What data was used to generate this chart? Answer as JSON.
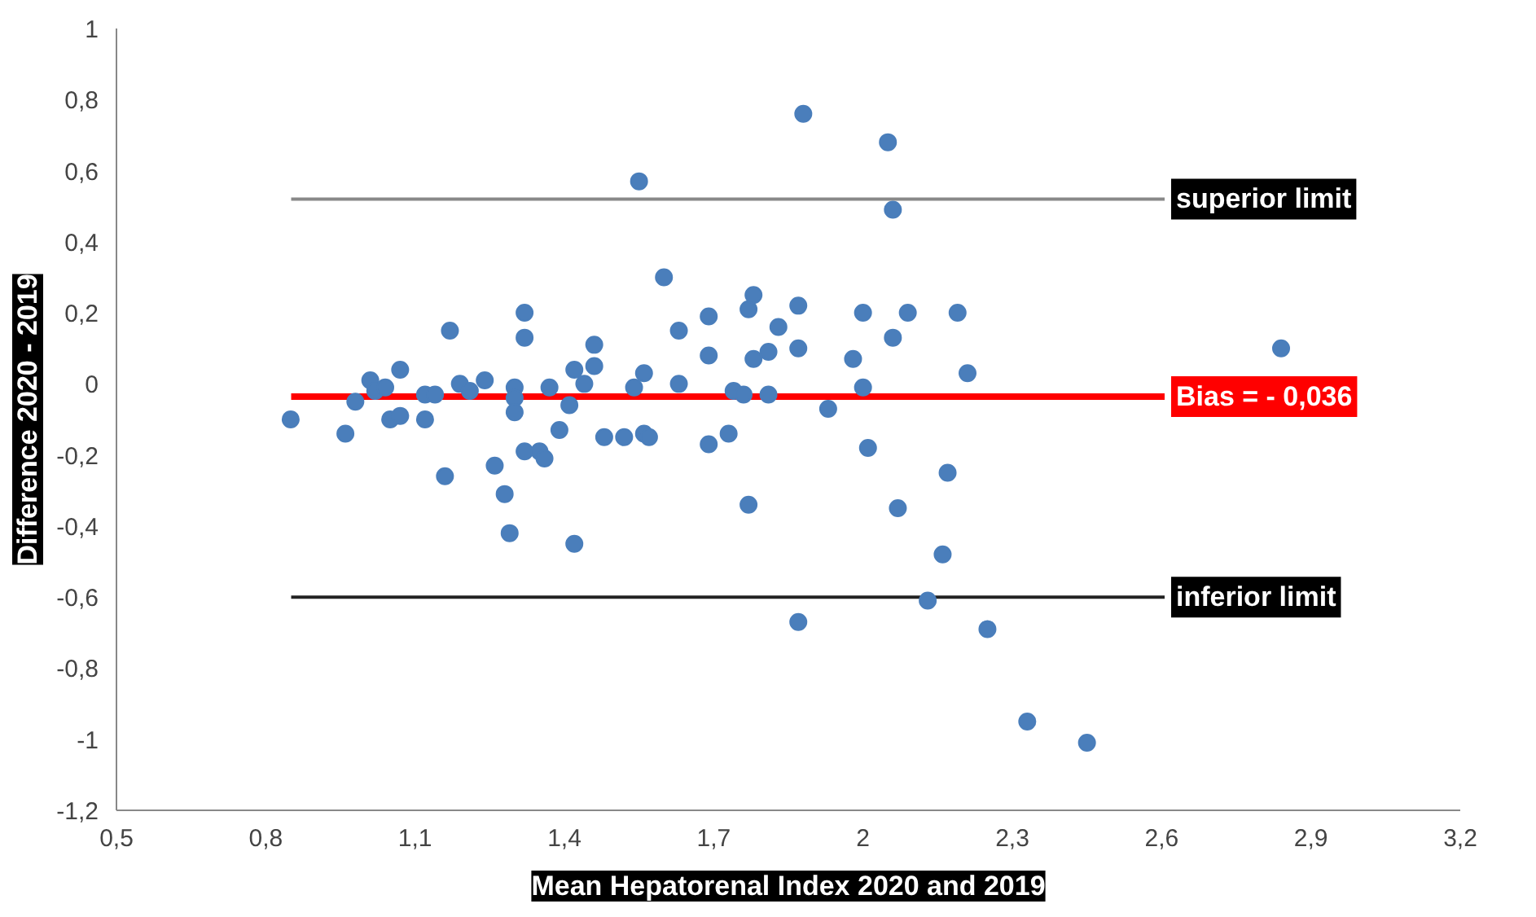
{
  "chart_data": {
    "type": "scatter",
    "xlabel": "Mean Hepatorenal Index 2020 and 2019",
    "ylabel": "Difference 2020 - 2019",
    "marker": "circle",
    "grid": false,
    "x": [
      0.85,
      0.96,
      0.98,
      1.01,
      1.02,
      1.04,
      1.05,
      1.07,
      1.07,
      1.12,
      1.12,
      1.14,
      1.16,
      1.17,
      1.19,
      1.21,
      1.24,
      1.26,
      1.28,
      1.3,
      1.3,
      1.3,
      1.29,
      1.32,
      1.32,
      1.32,
      1.35,
      1.36,
      1.37,
      1.39,
      1.41,
      1.42,
      1.42,
      1.44,
      1.46,
      1.46,
      1.48,
      1.52,
      1.54,
      1.55,
      1.56,
      1.56,
      1.57,
      1.6,
      1.63,
      1.63,
      1.69,
      1.69,
      1.69,
      1.73,
      1.74,
      1.76,
      1.77,
      1.78,
      1.77,
      1.78,
      1.81,
      1.81,
      1.83,
      1.87,
      1.87,
      1.87,
      1.88,
      1.93,
      1.98,
      2.0,
      2.0,
      2.01,
      2.05,
      2.06,
      2.06,
      2.07,
      2.09,
      2.13,
      2.16,
      2.17,
      2.19,
      2.21,
      2.25,
      2.33,
      2.45,
      2.84
    ],
    "series": [
      {
        "color": "#4a7ebb",
        "values": [
          -0.1,
          -0.14,
          -0.05,
          0.01,
          -0.02,
          -0.01,
          -0.1,
          -0.09,
          0.04,
          -0.03,
          -0.1,
          -0.03,
          -0.26,
          0.15,
          0.0,
          -0.02,
          0.01,
          -0.23,
          -0.31,
          -0.01,
          -0.04,
          -0.08,
          -0.42,
          0.2,
          0.13,
          -0.19,
          -0.19,
          -0.21,
          -0.01,
          -0.13,
          -0.06,
          -0.45,
          0.04,
          0.0,
          0.11,
          0.05,
          -0.15,
          -0.15,
          -0.01,
          0.57,
          0.03,
          -0.14,
          -0.15,
          0.3,
          0.15,
          0.0,
          0.19,
          0.08,
          -0.17,
          -0.14,
          -0.02,
          -0.03,
          0.21,
          0.25,
          -0.34,
          0.07,
          -0.03,
          0.09,
          0.16,
          0.22,
          0.1,
          -0.67,
          0.76,
          -0.07,
          0.07,
          0.2,
          -0.01,
          -0.18,
          0.68,
          0.49,
          0.13,
          -0.35,
          0.2,
          -0.61,
          -0.48,
          -0.25,
          0.2,
          0.03,
          -0.69,
          -0.95,
          -1.01,
          0.1
        ]
      }
    ],
    "xlim": [
      0.5,
      3.2
    ],
    "xticks": [
      {
        "value": 0.5,
        "label": "0,5"
      },
      {
        "value": 0.8,
        "label": "0,8"
      },
      {
        "value": 1.1,
        "label": "1,1"
      },
      {
        "value": 1.4,
        "label": "1,4"
      },
      {
        "value": 1.7,
        "label": "1,7"
      },
      {
        "value": 2.0,
        "label": "2"
      },
      {
        "value": 2.3,
        "label": "2,3"
      },
      {
        "value": 2.6,
        "label": "2,6"
      },
      {
        "value": 2.9,
        "label": "2,9"
      },
      {
        "value": 3.2,
        "label": "3,2"
      }
    ],
    "ylim": [
      -1.2,
      1
    ],
    "yticks": [
      {
        "value": -1.2,
        "label": "-1,2"
      },
      {
        "value": -1,
        "label": "-1"
      },
      {
        "value": -0.8,
        "label": "-0,8"
      },
      {
        "value": -0.6,
        "label": "-0,6"
      },
      {
        "value": -0.4,
        "label": "-0,4"
      },
      {
        "value": -0.2,
        "label": "-0,2"
      },
      0,
      {
        "value": 0.2,
        "label": "0,2"
      },
      {
        "value": 0.4,
        "label": "0,4"
      },
      {
        "value": 0.6,
        "label": "0,6"
      },
      {
        "value": 0.8,
        "label": "0,8"
      },
      1
    ],
    "ref_lines": [
      {
        "axis": "y",
        "value": 0.52,
        "label": "superior limit",
        "color": "#888888"
      },
      {
        "axis": "y",
        "value": -0.036,
        "label": "Bias = - 0,036",
        "color": "#ff0000"
      },
      {
        "axis": "y",
        "value": -0.6,
        "label": "inferior limit",
        "color": "#222222"
      }
    ]
  }
}
